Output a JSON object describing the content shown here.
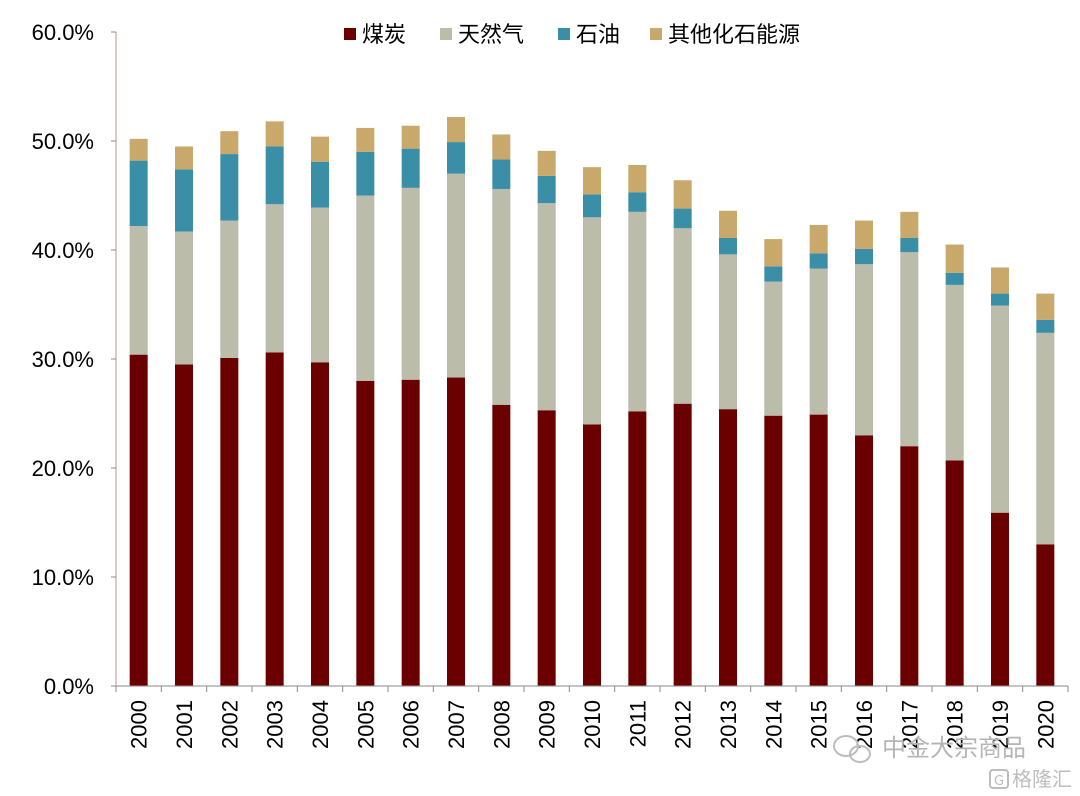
{
  "chart_data": {
    "type": "bar",
    "stacked": true,
    "categories": [
      "2000",
      "2001",
      "2002",
      "2003",
      "2004",
      "2005",
      "2006",
      "2007",
      "2008",
      "2009",
      "2010",
      "2011",
      "2012",
      "2013",
      "2014",
      "2015",
      "2016",
      "2017",
      "2018",
      "2019",
      "2020"
    ],
    "series": [
      {
        "name": "煤炭",
        "color": "#6b0000",
        "values": [
          30.4,
          29.5,
          30.1,
          30.6,
          29.7,
          28.0,
          28.1,
          28.3,
          25.8,
          25.3,
          24.0,
          25.2,
          25.9,
          25.4,
          24.8,
          24.9,
          23.0,
          22.0,
          20.7,
          15.9,
          13.0
        ]
      },
      {
        "name": "天然气",
        "color": "#bcbcaa",
        "values": [
          11.8,
          12.2,
          12.6,
          13.6,
          14.2,
          17.0,
          17.6,
          18.7,
          19.8,
          19.0,
          19.0,
          18.3,
          16.1,
          14.2,
          12.3,
          13.4,
          15.7,
          17.8,
          16.1,
          19.0,
          19.4
        ]
      },
      {
        "name": "石油",
        "color": "#3a8ea5",
        "values": [
          6.0,
          5.7,
          6.1,
          5.3,
          4.2,
          4.0,
          3.6,
          2.9,
          2.7,
          2.5,
          2.1,
          1.8,
          1.8,
          1.5,
          1.4,
          1.4,
          1.4,
          1.3,
          1.1,
          1.1,
          1.2
        ]
      },
      {
        "name": "其他化石能源",
        "color": "#c9a86c",
        "values": [
          2.0,
          2.1,
          2.1,
          2.3,
          2.3,
          2.2,
          2.1,
          2.3,
          2.3,
          2.3,
          2.5,
          2.5,
          2.6,
          2.5,
          2.5,
          2.6,
          2.6,
          2.4,
          2.6,
          2.4,
          2.4
        ]
      }
    ],
    "ylim": [
      0,
      60
    ],
    "yticks": [
      "0.0%",
      "10.0%",
      "20.0%",
      "30.0%",
      "40.0%",
      "50.0%",
      "60.0%"
    ],
    "legend_position": "top",
    "grid": false
  },
  "watermark": {
    "line1": "中金大宗商品",
    "line2": "格隆汇"
  }
}
